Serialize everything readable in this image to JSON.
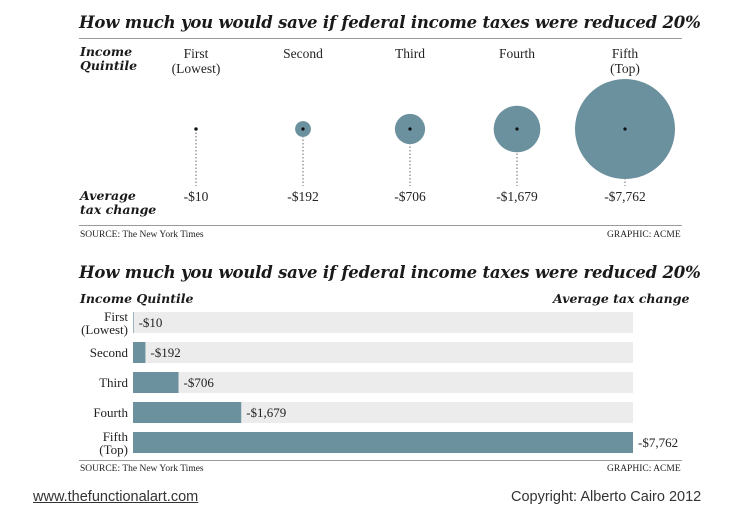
{
  "chart_data": [
    {
      "type": "bubble",
      "title": "How much you would save if federal income taxes were reduced 20%",
      "row_label_top": [
        "Income",
        "Quintile"
      ],
      "row_label_bottom": [
        "Average",
        "tax change"
      ],
      "categories": [
        [
          "First",
          "(Lowest)"
        ],
        [
          "Second"
        ],
        [
          "Third"
        ],
        [
          "Fourth"
        ],
        [
          "Fifth",
          "(Top)"
        ]
      ],
      "values": [
        -10,
        -192,
        -706,
        -1679,
        -7762
      ],
      "value_labels": [
        "-$10",
        "-$192",
        "-$706",
        "-$1,679",
        "-$7,762"
      ],
      "color": "#6b909e",
      "source": "SOURCE: The New York Times",
      "graphic": "GRAPHIC: ACME"
    },
    {
      "type": "bar",
      "orientation": "horizontal",
      "title": "How much you would save if federal income taxes were reduced 20%",
      "xlabel": "Average tax change",
      "ylabel": "Income Quintile",
      "categories": [
        [
          "First",
          "(Lowest)"
        ],
        [
          "Second"
        ],
        [
          "Third"
        ],
        [
          "Fourth"
        ],
        [
          "Fifth",
          "(Top)"
        ]
      ],
      "values": [
        -10,
        -192,
        -706,
        -1679,
        -7762
      ],
      "value_labels": [
        "-$10",
        "-$192",
        "-$706",
        "-$1,679",
        "-$7,762"
      ],
      "xlim": [
        0,
        -7762
      ],
      "color": "#6b909e",
      "track_color": "#ececec",
      "source": "SOURCE: The New York Times",
      "graphic": "GRAPHIC: ACME"
    }
  ],
  "footer": {
    "website": "www.thefunctionalart.com",
    "copyright": "Copyright: Alberto Cairo 2012"
  }
}
